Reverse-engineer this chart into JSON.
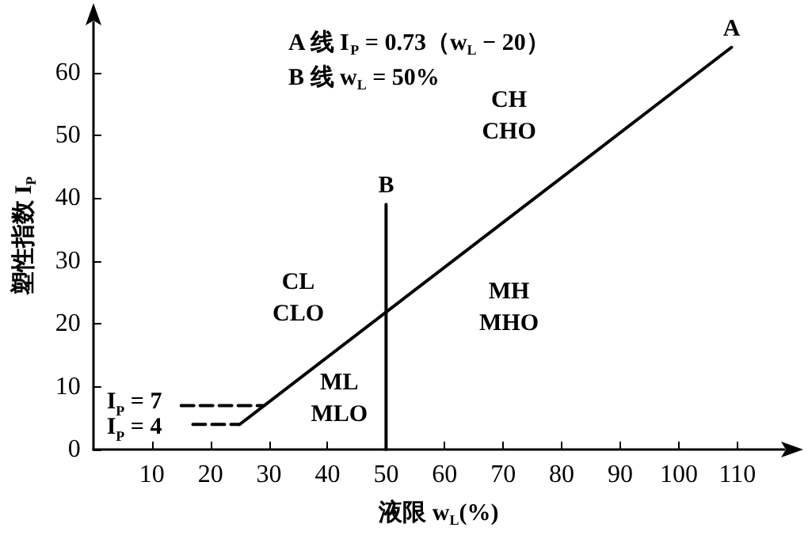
{
  "chart_data": {
    "type": "line",
    "xlabel": "液限 w$_{L}$(%)",
    "ylabel": "塑性指数 I$_{P}$",
    "xlim": [
      0,
      118
    ],
    "ylim": [
      0,
      68
    ],
    "xticks": [
      10,
      20,
      30,
      40,
      50,
      60,
      70,
      80,
      90,
      100,
      110
    ],
    "yticks": [
      0,
      10,
      20,
      30,
      40,
      50,
      60
    ],
    "tick_labels": "xy",
    "grid": false,
    "marker": "none",
    "line_style": "solid",
    "series": [
      {
        "name": "A",
        "color": "#000000",
        "x": [
          25,
          109
        ],
        "values": [
          4,
          64
        ]
      },
      {
        "name": "B",
        "color": "#000000",
        "x": [
          50,
          50
        ],
        "values": [
          0,
          39
        ]
      },
      {
        "color": "#000000",
        "x": [
          15,
          29
        ],
        "values": [
          7,
          7
        ],
        "line_style": "dashed"
      },
      {
        "color": "#000000",
        "x": [
          17,
          25
        ],
        "values": [
          4,
          4
        ],
        "line_style": "dashed"
      }
    ],
    "annotations": [
      "A 线 I$_{P}$ = 0.73（w$_{L}$ − 20）",
      "B 线 w$_{L}$ = 50%",
      "CH\nCHO",
      "CL\nCLO",
      "MH\nMHO",
      "ML\nMLO",
      "I$_{P}$ = 7",
      "I$_{P}$ = 4"
    ]
  }
}
